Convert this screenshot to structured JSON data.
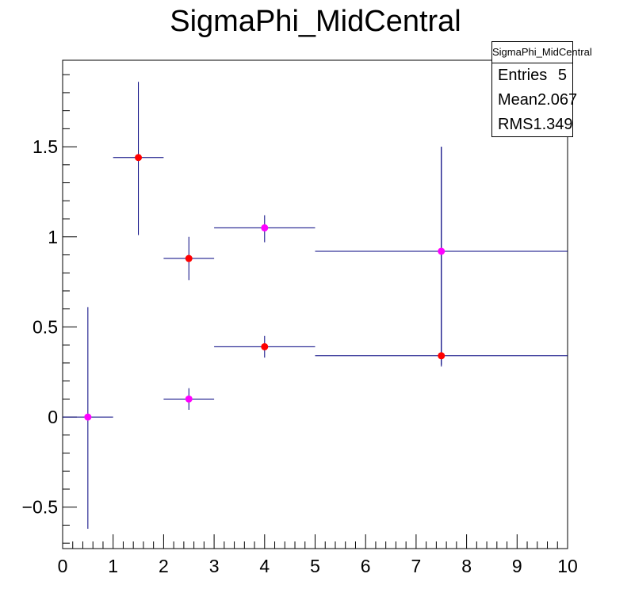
{
  "chart_data": {
    "type": "scatter",
    "title": "SigmaPhi_MidCentral",
    "xlabel": "",
    "ylabel": "",
    "xlim": [
      0,
      10
    ],
    "ylim": [
      -0.73,
      1.98
    ],
    "x_ticks": [
      0,
      1,
      2,
      3,
      4,
      5,
      6,
      7,
      8,
      9,
      10
    ],
    "y_ticks": [
      -0.5,
      0,
      0.5,
      1,
      1.5
    ],
    "y_tick_labels": [
      "−0.5",
      "0",
      "0.5",
      "1",
      "1.5"
    ],
    "grid": false,
    "series": [
      {
        "color": "#ff0000",
        "points": [
          {
            "x": 1.5,
            "x_err": 0.5,
            "y": 1.44,
            "y_err_low": 0.43,
            "y_err_high": 0.42
          },
          {
            "x": 2.5,
            "x_err": 0.5,
            "y": 0.88,
            "y_err_low": 0.12,
            "y_err_high": 0.12
          },
          {
            "x": 4.0,
            "x_err": 1.0,
            "y": 0.39,
            "y_err_low": 0.06,
            "y_err_high": 0.06
          },
          {
            "x": 7.5,
            "x_err": 2.5,
            "y": 0.34,
            "y_err_low": 0.06,
            "y_err_high": 1.16
          }
        ]
      },
      {
        "color": "#ff00ff",
        "points": [
          {
            "x": 0.5,
            "x_err": 0.5,
            "y": 0.0,
            "y_err_low": 0.62,
            "y_err_high": 0.61
          },
          {
            "x": 2.5,
            "x_err": 0.5,
            "y": 0.1,
            "y_err_low": 0.06,
            "y_err_high": 0.06
          },
          {
            "x": 4.0,
            "x_err": 1.0,
            "y": 1.05,
            "y_err_low": 0.08,
            "y_err_high": 0.07
          },
          {
            "x": 7.5,
            "x_err": 2.5,
            "y": 0.92,
            "y_err_low": 0.63,
            "y_err_high": 0.58
          }
        ]
      }
    ],
    "error_bar_color": "#00007f"
  },
  "stats": {
    "title": "SigmaPhi_MidCentral",
    "rows": [
      {
        "label": "Entries",
        "value": "5"
      },
      {
        "label": "Mean",
        "value": "2.067"
      },
      {
        "label": "RMS",
        "value": "1.349"
      }
    ]
  }
}
